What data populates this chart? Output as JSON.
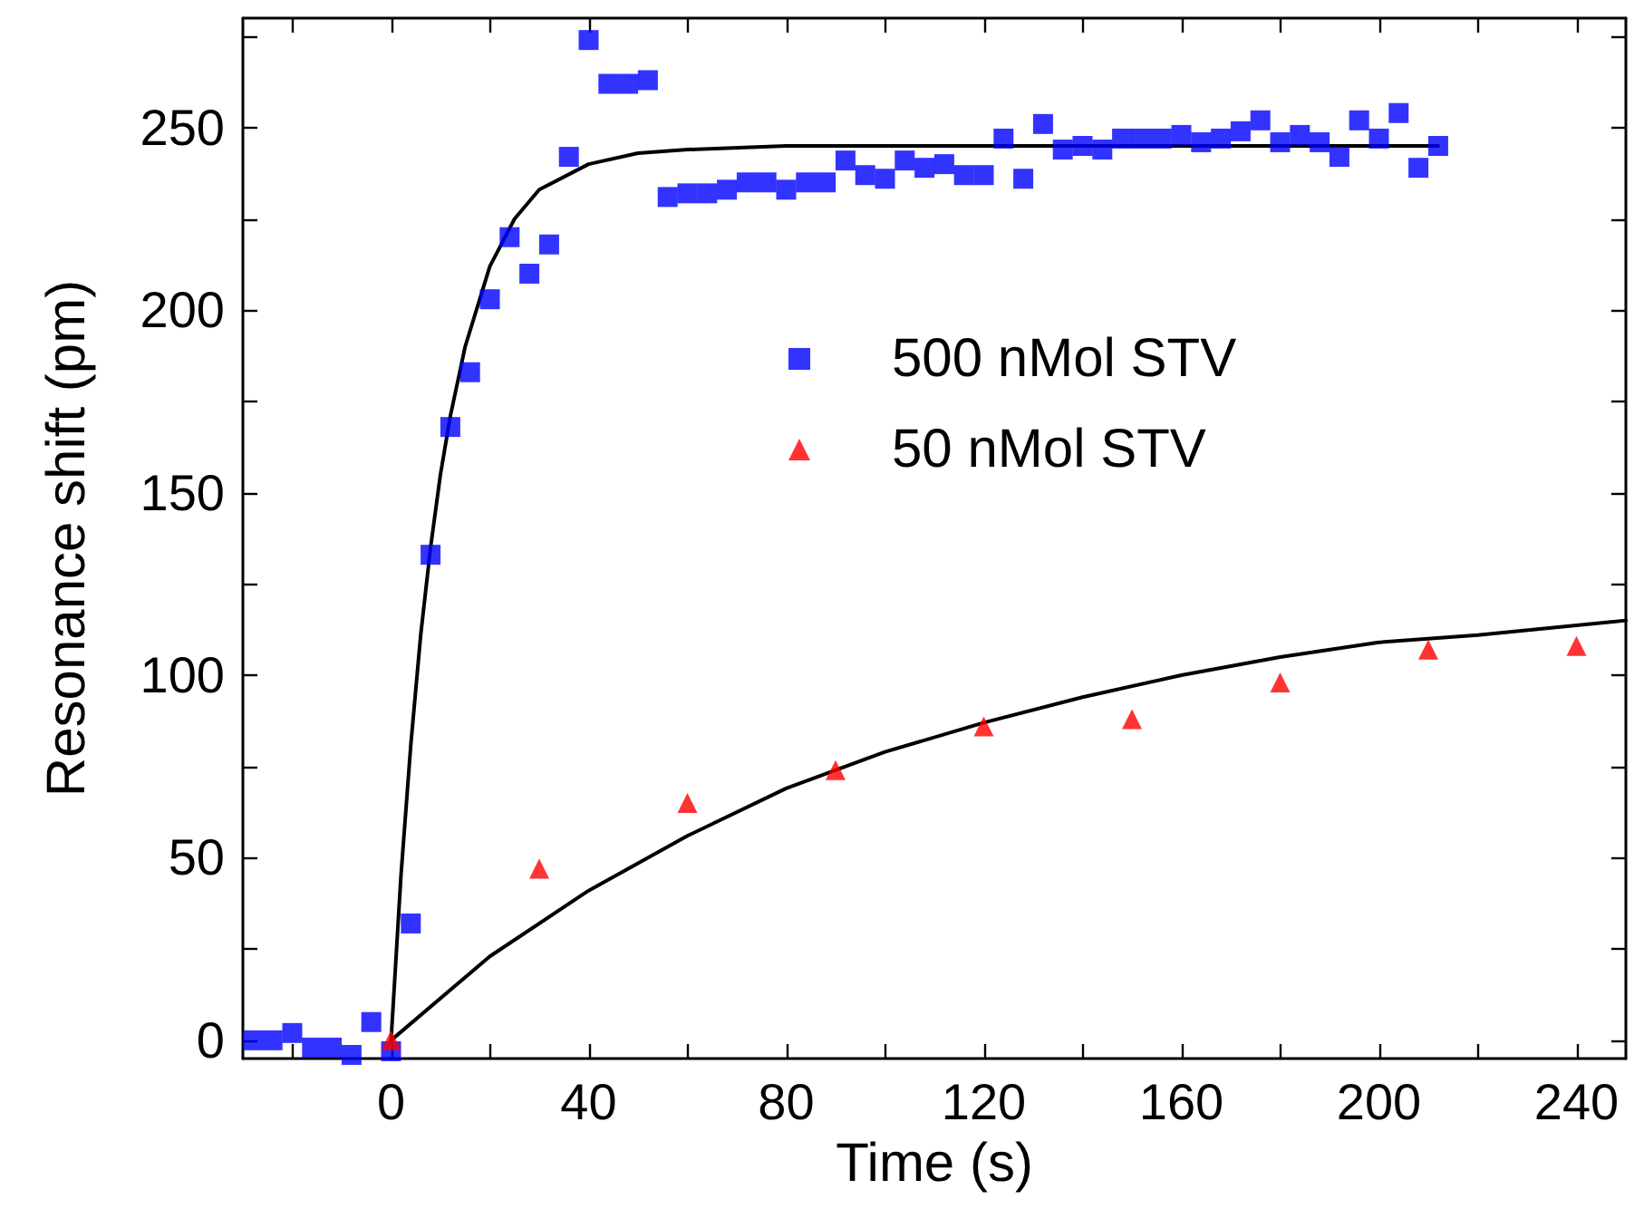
{
  "chart_data": {
    "type": "scatter",
    "xlabel": "Time (s)",
    "ylabel": "Resonance shift (pm)",
    "xlim": [
      -30,
      250
    ],
    "ylim": [
      -5,
      280
    ],
    "xticks": [
      {
        "value": -20,
        "label": null
      },
      0,
      {
        "value": 20,
        "label": null
      },
      40,
      {
        "value": 60,
        "label": null
      },
      80,
      {
        "value": 100,
        "label": null
      },
      120,
      {
        "value": 140,
        "label": null
      },
      160,
      {
        "value": 180,
        "label": null
      },
      200,
      {
        "value": 220,
        "label": null
      },
      240
    ],
    "yticks": [
      0,
      {
        "value": 25,
        "label": null
      },
      50,
      {
        "value": 75,
        "label": null
      },
      100,
      {
        "value": 125,
        "label": null
      },
      150,
      {
        "value": 175,
        "label": null
      },
      200,
      {
        "value": 225,
        "label": null
      },
      250,
      {
        "value": 275,
        "label": null
      }
    ],
    "grid": false,
    "legend": "right",
    "series": [
      {
        "name": "500 nMol STV",
        "marker": "square",
        "color": "#0000ff",
        "x": [
          -28,
          -24,
          -20,
          -16,
          -12,
          -8,
          -4,
          0,
          4,
          8,
          12,
          16,
          20,
          24,
          28,
          32,
          36,
          40,
          44,
          48,
          52,
          56,
          60,
          64,
          68,
          72,
          76,
          80,
          84,
          88,
          92,
          96,
          100,
          104,
          108,
          112,
          116,
          120,
          124,
          128,
          132,
          136,
          140,
          144,
          148,
          152,
          156,
          160,
          164,
          168,
          172,
          176,
          180,
          184,
          188,
          192,
          196,
          200,
          204,
          208,
          212
        ],
        "values": [
          0,
          0,
          2,
          -2,
          -2,
          -4,
          5,
          -3,
          32,
          133,
          168,
          183,
          203,
          220,
          210,
          218,
          242,
          274,
          262,
          262,
          263,
          231,
          232,
          232,
          233,
          235,
          235,
          233,
          235,
          235,
          241,
          237,
          236,
          241,
          239,
          240,
          237,
          237,
          247,
          236,
          251,
          244,
          245,
          244,
          247,
          247,
          247,
          248,
          246,
          247,
          249,
          252,
          246,
          248,
          246,
          242,
          252,
          247,
          254,
          239,
          245
        ]
      },
      {
        "name": "50 nMol STV",
        "marker": "triangle",
        "color": "#ff0000",
        "x": [
          0,
          30,
          60,
          90,
          120,
          150,
          180,
          210,
          240
        ],
        "values": [
          0,
          47,
          65,
          74,
          86,
          88,
          98,
          107,
          108
        ]
      },
      {
        "type": "line",
        "marker": "none",
        "color": "#000000",
        "x": [
          0,
          2,
          4,
          6,
          8,
          10,
          12,
          15,
          20,
          25,
          30,
          40,
          50,
          60,
          80,
          100,
          212
        ],
        "values": [
          0,
          45,
          81,
          111,
          135,
          155,
          171,
          190,
          212,
          225,
          233,
          240,
          243,
          244,
          245,
          245,
          245
        ]
      },
      {
        "type": "line",
        "marker": "none",
        "color": "#000000",
        "x": [
          0,
          20,
          40,
          60,
          80,
          100,
          120,
          140,
          160,
          180,
          200,
          220,
          250
        ],
        "values": [
          0,
          23,
          41,
          56,
          69,
          79,
          87,
          94,
          100,
          105,
          109,
          111,
          115
        ]
      }
    ]
  }
}
